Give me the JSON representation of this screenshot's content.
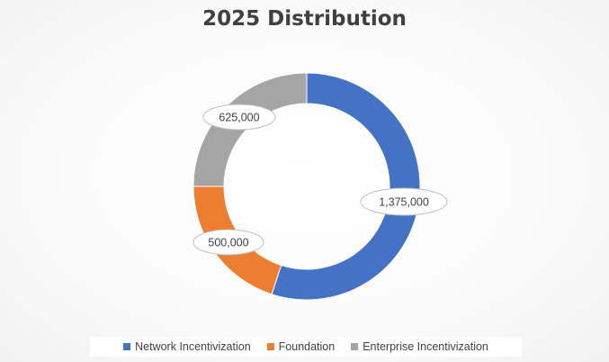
{
  "chart_data": {
    "type": "pie",
    "title": "2025 Distribution",
    "categories": [
      "Network Incentivization",
      "Foundation",
      "Enterprise Incentivization"
    ],
    "values": [
      1375000,
      500000,
      625000
    ],
    "data_labels": [
      "1,375,000",
      "500,000",
      "625,000"
    ],
    "colors": [
      "#4472C4",
      "#ED7D31",
      "#A5A5A5"
    ],
    "legend_position": "bottom"
  }
}
